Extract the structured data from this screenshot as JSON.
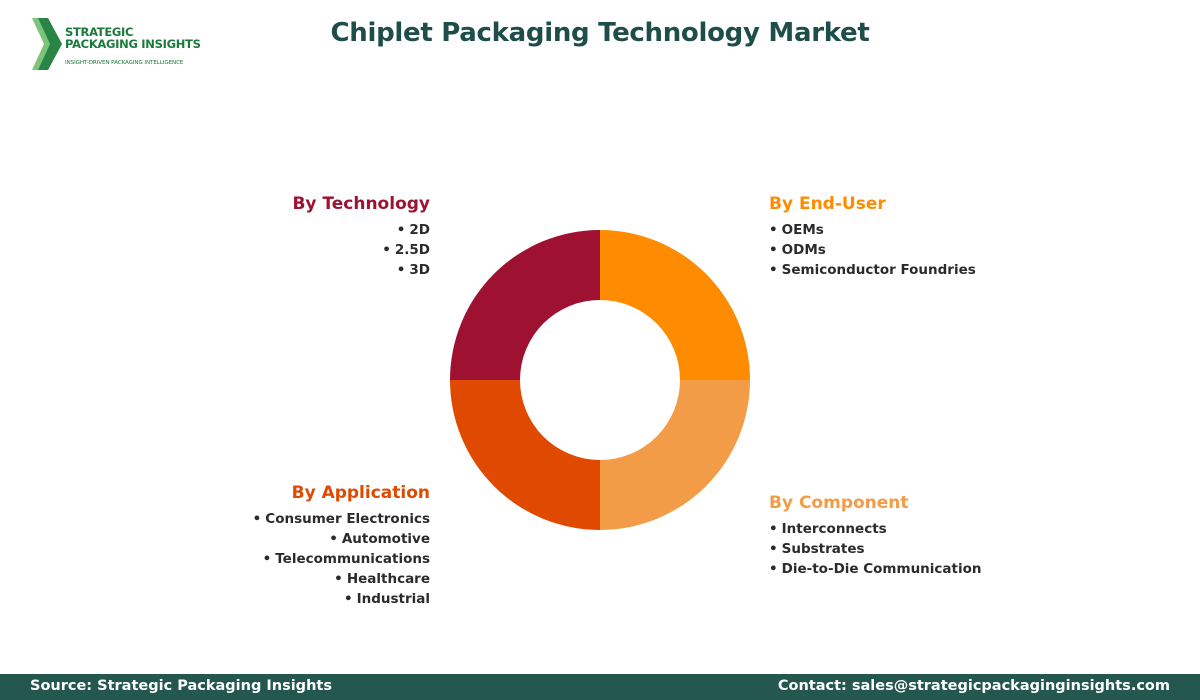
{
  "logo": {
    "line1": "STRATEGIC",
    "line2": "PACKAGING INSIGHTS",
    "tagline": "INSIGHT-DRIVEN PACKAGING INTELLIGENCE",
    "color": "#1a7a3c"
  },
  "title": "Chiplet Packaging Technology Market",
  "segments": [
    {
      "heading": "By Technology",
      "color": "#9e1131",
      "items": [
        "2D",
        "2.5D",
        "3D"
      ]
    },
    {
      "heading": "By End-User",
      "color": "#ff8c00",
      "items": [
        "OEMs",
        "ODMs",
        "Semiconductor Foundries"
      ]
    },
    {
      "heading": "By Application",
      "color": "#e04a00",
      "items": [
        "Consumer Electronics",
        "Automotive",
        "Telecommunications",
        "Healthcare",
        "Industrial"
      ]
    },
    {
      "heading": "By Component",
      "color": "#f39c47",
      "items": [
        "Interconnects",
        "Substrates",
        "Die-to-Die Communication"
      ]
    }
  ],
  "chart_data": {
    "type": "pie",
    "categories": [
      "By End-User",
      "By Component",
      "By Application",
      "By Technology"
    ],
    "values": [
      25,
      25,
      25,
      25
    ],
    "colors": [
      "#ff8c00",
      "#f39c47",
      "#e04a00",
      "#9e1131"
    ]
  },
  "footer": {
    "source": "Source: Strategic Packaging Insights",
    "contact": "Contact: sales@strategicpackaginginsights.com",
    "bg_color": "#24574e"
  }
}
